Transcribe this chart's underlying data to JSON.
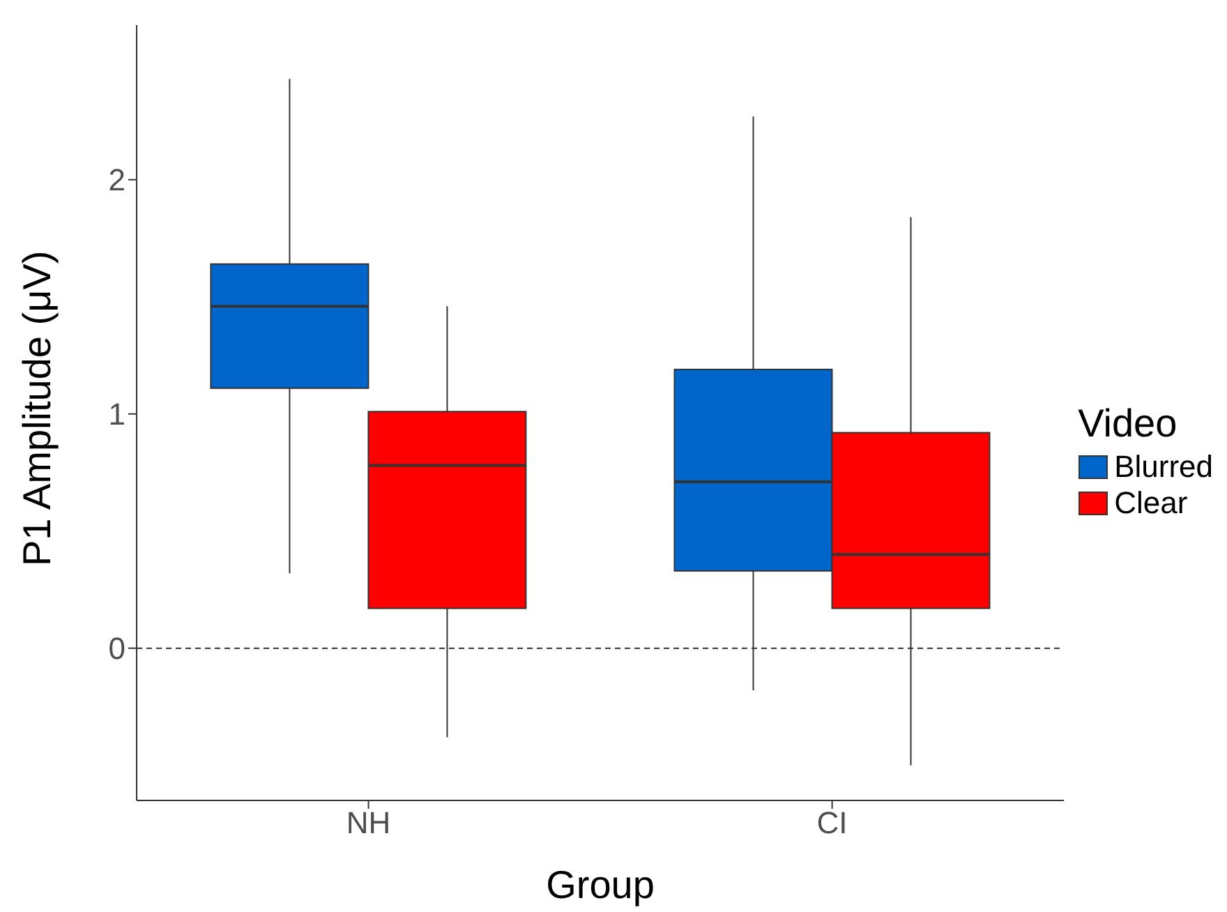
{
  "chart_data": {
    "type": "box",
    "xlabel": "Group",
    "ylabel": "P1 Amplitude (μV)",
    "legend_title": "Video",
    "categories": [
      "NH",
      "CI"
    ],
    "ylim": [
      -0.65,
      2.66
    ],
    "yticks": [
      0,
      1,
      2
    ],
    "grid": false,
    "legend": "right",
    "ref_lines": [
      {
        "axis": "y",
        "value": 0,
        "line_style": "dashed"
      }
    ],
    "series": [
      {
        "name": "Blurred",
        "color": "#0066cc",
        "boxes": [
          {
            "low": 0.32,
            "q1": 1.11,
            "median": 1.46,
            "q3": 1.64,
            "high": 2.43
          },
          {
            "low": -0.18,
            "q1": 0.33,
            "median": 0.71,
            "q3": 1.19,
            "high": 2.27
          }
        ]
      },
      {
        "name": "Clear",
        "color": "#ff0000",
        "boxes": [
          {
            "low": -0.38,
            "q1": 0.17,
            "median": 0.78,
            "q3": 1.01,
            "high": 1.46
          },
          {
            "low": -0.5,
            "q1": 0.17,
            "median": 0.4,
            "q3": 0.92,
            "high": 1.84
          }
        ]
      }
    ]
  }
}
